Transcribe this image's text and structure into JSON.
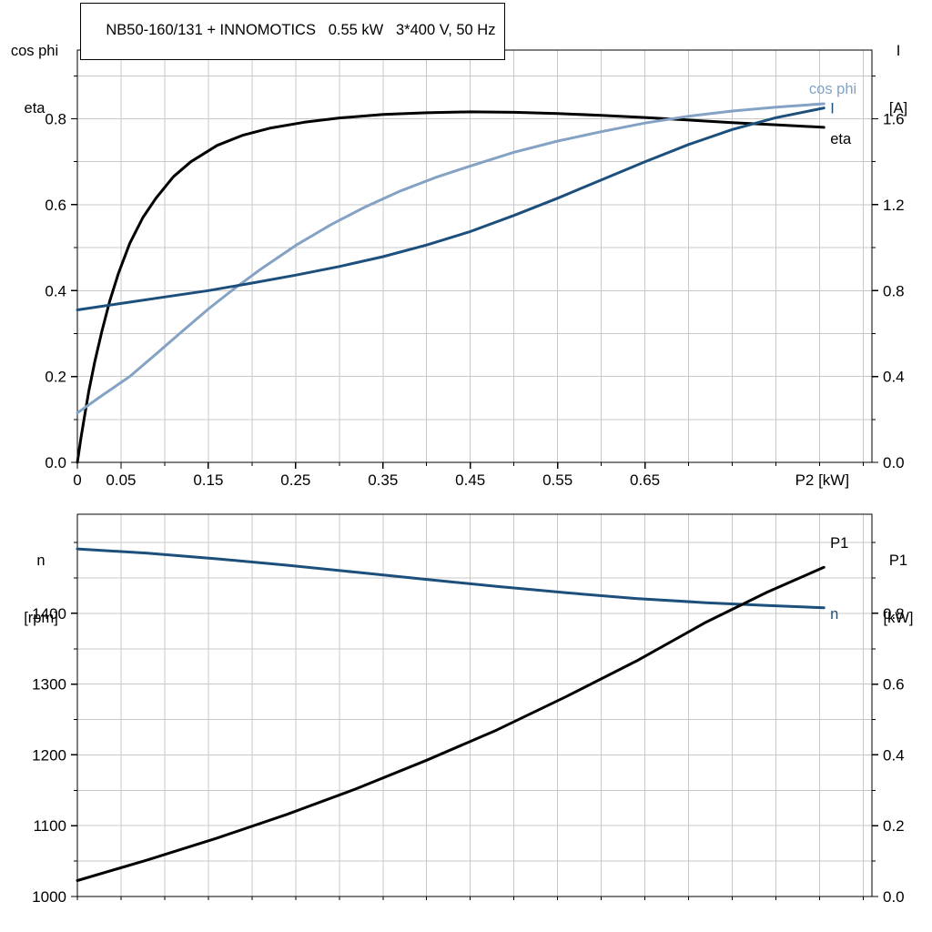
{
  "title_box": "NB50-160/131 + INNOMOTICS   0.55 kW   3*400 V, 50 Hz",
  "colors": {
    "eta": "#000000",
    "p1": "#000000",
    "cos_phi": "#84a2c4",
    "current": "#1c4f7c",
    "speed": "#1c4f7c",
    "grid": "#c8c8c8",
    "axis": "#000000"
  },
  "chart_data": [
    {
      "type": "line",
      "header_left": [
        "cos phi",
        "eta"
      ],
      "header_right": [
        "I",
        "[A]"
      ],
      "x_axis_label": {
        "t": "P2 [kW]",
        "v": 0.822
      },
      "x_domain": [
        0,
        0.91
      ],
      "x_grid_step": 0.05,
      "left_domain": [
        0,
        0.96
      ],
      "left_grid_step": 0.1,
      "right_domain": [
        0,
        1.92
      ],
      "right_grid_step": 0.2,
      "x_ticks": [
        {
          "v": 0,
          "t": "0"
        },
        {
          "v": 0.05,
          "t": "0.05"
        },
        {
          "v": 0.15,
          "t": "0.15"
        },
        {
          "v": 0.25,
          "t": "0.25"
        },
        {
          "v": 0.35,
          "t": "0.35"
        },
        {
          "v": 0.45,
          "t": "0.45"
        },
        {
          "v": 0.55,
          "t": "0.55"
        },
        {
          "v": 0.65,
          "t": "0.65"
        }
      ],
      "left_ticks": [
        {
          "v": 0,
          "t": "0.0"
        },
        {
          "v": 0.2,
          "t": "0.2"
        },
        {
          "v": 0.4,
          "t": "0.4"
        },
        {
          "v": 0.6,
          "t": "0.6"
        },
        {
          "v": 0.8,
          "t": "0.8"
        }
      ],
      "right_ticks": [
        {
          "v": 0,
          "t": "0.0"
        },
        {
          "v": 0.4,
          "t": "0.4"
        },
        {
          "v": 0.8,
          "t": "0.8"
        },
        {
          "v": 1.2,
          "t": "1.2"
        },
        {
          "v": 1.6,
          "t": "1.6"
        }
      ],
      "series": [
        {
          "name": "eta-curve",
          "color": "eta",
          "axis": "left",
          "points": [
            [
              0,
              0
            ],
            [
              0.004,
              0.055
            ],
            [
              0.008,
              0.105
            ],
            [
              0.013,
              0.165
            ],
            [
              0.02,
              0.235
            ],
            [
              0.028,
              0.305
            ],
            [
              0.037,
              0.375
            ],
            [
              0.047,
              0.44
            ],
            [
              0.06,
              0.51
            ],
            [
              0.075,
              0.57
            ],
            [
              0.09,
              0.615
            ],
            [
              0.11,
              0.665
            ],
            [
              0.13,
              0.7
            ],
            [
              0.16,
              0.738
            ],
            [
              0.19,
              0.762
            ],
            [
              0.22,
              0.778
            ],
            [
              0.26,
              0.792
            ],
            [
              0.3,
              0.802
            ],
            [
              0.35,
              0.81
            ],
            [
              0.4,
              0.814
            ],
            [
              0.45,
              0.816
            ],
            [
              0.5,
              0.815
            ],
            [
              0.55,
              0.812
            ],
            [
              0.6,
              0.808
            ],
            [
              0.65,
              0.803
            ],
            [
              0.7,
              0.797
            ],
            [
              0.75,
              0.791
            ],
            [
              0.8,
              0.786
            ],
            [
              0.855,
              0.78
            ]
          ],
          "label": {
            "text": "eta",
            "x": 0.856,
            "y": 0.742,
            "anchor": "start",
            "dx": 6
          }
        },
        {
          "name": "cos-phi-curve",
          "color": "cos_phi",
          "axis": "left",
          "points": [
            [
              0,
              0.115
            ],
            [
              0.03,
              0.158
            ],
            [
              0.06,
              0.2
            ],
            [
              0.09,
              0.252
            ],
            [
              0.12,
              0.305
            ],
            [
              0.15,
              0.357
            ],
            [
              0.18,
              0.405
            ],
            [
              0.21,
              0.45
            ],
            [
              0.25,
              0.505
            ],
            [
              0.29,
              0.553
            ],
            [
              0.33,
              0.595
            ],
            [
              0.37,
              0.632
            ],
            [
              0.41,
              0.663
            ],
            [
              0.45,
              0.69
            ],
            [
              0.5,
              0.722
            ],
            [
              0.55,
              0.748
            ],
            [
              0.6,
              0.77
            ],
            [
              0.65,
              0.79
            ],
            [
              0.7,
              0.806
            ],
            [
              0.75,
              0.818
            ],
            [
              0.8,
              0.827
            ],
            [
              0.855,
              0.835
            ]
          ],
          "label": {
            "text": "cos phi",
            "x": 0.838,
            "y": 0.858,
            "anchor": "start",
            "dx": 0
          }
        },
        {
          "name": "current-curve",
          "color": "current",
          "axis": "right",
          "points": [
            [
              0,
              0.71
            ],
            [
              0.05,
              0.74
            ],
            [
              0.1,
              0.77
            ],
            [
              0.15,
              0.8
            ],
            [
              0.2,
              0.835
            ],
            [
              0.25,
              0.872
            ],
            [
              0.3,
              0.912
            ],
            [
              0.35,
              0.958
            ],
            [
              0.4,
              1.012
            ],
            [
              0.45,
              1.075
            ],
            [
              0.5,
              1.15
            ],
            [
              0.55,
              1.23
            ],
            [
              0.6,
              1.315
            ],
            [
              0.65,
              1.4
            ],
            [
              0.7,
              1.48
            ],
            [
              0.75,
              1.55
            ],
            [
              0.8,
              1.605
            ],
            [
              0.855,
              1.65
            ]
          ],
          "label": {
            "text": "I",
            "x": 0.856,
            "y": 1.625,
            "anchor": "start",
            "dx": 6
          }
        }
      ]
    },
    {
      "type": "line",
      "header_left": [
        "n",
        "[rpm]"
      ],
      "header_right": [
        "P1",
        "[kW]"
      ],
      "x_axis_label": null,
      "x_domain": [
        0,
        0.91
      ],
      "x_grid_step": 0.05,
      "left_domain": [
        1000,
        1540
      ],
      "left_grid_step": 50,
      "right_domain": [
        0,
        1.08
      ],
      "right_grid_step": 0.1,
      "x_ticks": [],
      "left_ticks": [
        {
          "v": 1000,
          "t": "1000"
        },
        {
          "v": 1100,
          "t": "1100"
        },
        {
          "v": 1200,
          "t": "1200"
        },
        {
          "v": 1300,
          "t": "1300"
        },
        {
          "v": 1400,
          "t": "1400"
        }
      ],
      "right_ticks": [
        {
          "v": 0,
          "t": "0.0"
        },
        {
          "v": 0.2,
          "t": "0.2"
        },
        {
          "v": 0.4,
          "t": "0.4"
        },
        {
          "v": 0.6,
          "t": "0.6"
        },
        {
          "v": 0.8,
          "t": "0.8"
        }
      ],
      "series": [
        {
          "name": "speed-curve",
          "color": "speed",
          "axis": "left",
          "points": [
            [
              0,
              1491
            ],
            [
              0.08,
              1485
            ],
            [
              0.16,
              1477
            ],
            [
              0.24,
              1468
            ],
            [
              0.32,
              1458
            ],
            [
              0.4,
              1448
            ],
            [
              0.48,
              1438
            ],
            [
              0.56,
              1429
            ],
            [
              0.64,
              1421
            ],
            [
              0.72,
              1415
            ],
            [
              0.79,
              1411
            ],
            [
              0.855,
              1408
            ]
          ],
          "label": {
            "text": "n",
            "x": 0.858,
            "y": 1392,
            "anchor": "start",
            "dx": 4
          }
        },
        {
          "name": "p1-curve",
          "color": "p1",
          "axis": "right",
          "points": [
            [
              0,
              0.045
            ],
            [
              0.08,
              0.103
            ],
            [
              0.16,
              0.165
            ],
            [
              0.24,
              0.232
            ],
            [
              0.32,
              0.305
            ],
            [
              0.4,
              0.385
            ],
            [
              0.48,
              0.47
            ],
            [
              0.56,
              0.565
            ],
            [
              0.64,
              0.665
            ],
            [
              0.72,
              0.775
            ],
            [
              0.79,
              0.86
            ],
            [
              0.855,
              0.93
            ]
          ],
          "label": {
            "text": "P1",
            "x": 0.858,
            "y": 0.985,
            "anchor": "start",
            "dx": 4
          }
        }
      ]
    }
  ]
}
